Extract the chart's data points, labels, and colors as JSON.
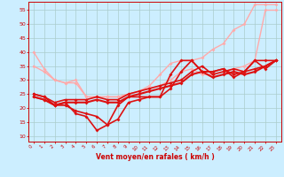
{
  "bg_color": "#cceeff",
  "grid_color": "#aacccc",
  "xlabel": "Vent moyen/en rafales ( km/h )",
  "xlim": [
    -0.5,
    23.5
  ],
  "ylim": [
    8,
    58
  ],
  "yticks": [
    10,
    15,
    20,
    25,
    30,
    35,
    40,
    45,
    50,
    55
  ],
  "xticks": [
    0,
    1,
    2,
    3,
    4,
    5,
    6,
    7,
    8,
    9,
    10,
    11,
    12,
    13,
    14,
    15,
    16,
    17,
    18,
    19,
    20,
    21,
    22,
    23
  ],
  "lines": [
    {
      "x": [
        0,
        1,
        2,
        3,
        4,
        5,
        6,
        7,
        8,
        9,
        10,
        11,
        12,
        13,
        14,
        15,
        16,
        17,
        18,
        19,
        20,
        21,
        22,
        23
      ],
      "y": [
        40,
        34,
        30,
        29,
        29,
        24,
        24,
        24,
        24,
        25,
        26,
        27,
        28,
        30,
        33,
        34,
        32,
        32,
        33,
        34,
        35,
        37,
        55,
        55
      ],
      "color": "#ffaaaa",
      "lw": 1.0,
      "marker": "D",
      "ms": 2.0
    },
    {
      "x": [
        0,
        1,
        2,
        3,
        4,
        5,
        6,
        7,
        8,
        9,
        10,
        11,
        12,
        13,
        14,
        15,
        16,
        17,
        18,
        19,
        20,
        21,
        22,
        23
      ],
      "y": [
        35,
        33,
        30,
        29,
        30,
        24,
        24,
        24,
        24,
        25,
        26,
        28,
        32,
        36,
        37,
        37,
        38,
        41,
        43,
        48,
        50,
        57,
        57,
        57
      ],
      "color": "#ffaaaa",
      "lw": 1.0,
      "marker": "D",
      "ms": 2.0
    },
    {
      "x": [
        0,
        1,
        2,
        3,
        4,
        5,
        6,
        7,
        8,
        9,
        10,
        11,
        12,
        13,
        14,
        15,
        16,
        17,
        18,
        19,
        20,
        21,
        22,
        23
      ],
      "y": [
        24,
        23,
        21,
        21,
        19,
        18,
        17,
        14,
        21,
        24,
        24,
        24,
        24,
        32,
        37,
        37,
        33,
        33,
        34,
        31,
        33,
        37,
        37,
        37
      ],
      "color": "#dd1111",
      "lw": 1.2,
      "marker": "D",
      "ms": 2.0
    },
    {
      "x": [
        0,
        1,
        2,
        3,
        4,
        5,
        6,
        7,
        8,
        9,
        10,
        11,
        12,
        13,
        14,
        15,
        16,
        17,
        18,
        19,
        20,
        21,
        22,
        23
      ],
      "y": [
        25,
        24,
        21,
        22,
        18,
        17,
        12,
        14,
        16,
        22,
        23,
        24,
        24,
        27,
        33,
        37,
        33,
        33,
        34,
        32,
        33,
        37,
        34,
        37
      ],
      "color": "#dd1111",
      "lw": 1.2,
      "marker": "D",
      "ms": 2.0
    },
    {
      "x": [
        0,
        1,
        2,
        3,
        4,
        5,
        6,
        7,
        8,
        9,
        10,
        11,
        12,
        13,
        14,
        15,
        16,
        17,
        18,
        19,
        20,
        21,
        22,
        23
      ],
      "y": [
        24,
        23,
        21,
        22,
        22,
        22,
        23,
        22,
        22,
        24,
        25,
        26,
        27,
        28,
        29,
        32,
        33,
        31,
        32,
        33,
        32,
        33,
        35,
        37
      ],
      "color": "#dd1111",
      "lw": 1.5,
      "marker": "D",
      "ms": 2.0
    },
    {
      "x": [
        0,
        1,
        2,
        3,
        4,
        5,
        6,
        7,
        8,
        9,
        10,
        11,
        12,
        13,
        14,
        15,
        16,
        17,
        18,
        19,
        20,
        21,
        22,
        23
      ],
      "y": [
        25,
        24,
        22,
        23,
        23,
        23,
        24,
        23,
        23,
        25,
        26,
        27,
        28,
        29,
        30,
        33,
        35,
        32,
        33,
        34,
        33,
        34,
        35,
        37
      ],
      "color": "#dd1111",
      "lw": 1.2,
      "marker": "D",
      "ms": 2.0
    }
  ]
}
